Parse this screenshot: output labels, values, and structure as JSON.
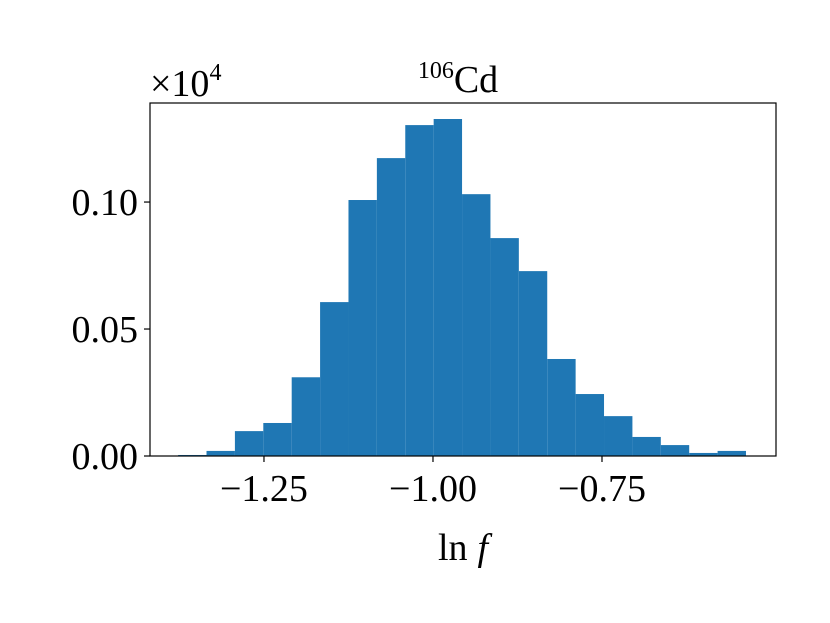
{
  "chart_data": {
    "type": "histogram",
    "title": {
      "superscript": "106",
      "text": "Cd"
    },
    "offset_text": {
      "base": "×10",
      "exponent": "4"
    },
    "xlabel": {
      "operator": "ln",
      "variable": "f"
    },
    "color": "#1f77b4",
    "bins": [
      -1.377,
      -1.335,
      -1.293,
      -1.251,
      -1.209,
      -1.167,
      -1.125,
      -1.083,
      -1.041,
      -0.999,
      -0.957,
      -0.915,
      -0.873,
      -0.831,
      -0.789,
      -0.747,
      -0.705,
      -0.663,
      -0.621,
      -0.579,
      -0.537
    ],
    "values": [
      0.0004,
      0.002,
      0.0098,
      0.013,
      0.031,
      0.0606,
      0.1008,
      0.1173,
      0.1303,
      0.1327,
      0.1031,
      0.0858,
      0.0728,
      0.0382,
      0.0244,
      0.0157,
      0.0075,
      0.0043,
      0.0012,
      0.002
    ],
    "xlim": [
      -1.4186,
      -0.4926
    ],
    "ylim": [
      0,
      0.139
    ],
    "xticks": [
      {
        "value": -1.25,
        "label": "−1.25"
      },
      {
        "value": -1.0,
        "label": "−1.00"
      },
      {
        "value": -0.75,
        "label": "−0.75"
      }
    ],
    "yticks": [
      {
        "value": 0,
        "label": "0.00"
      },
      {
        "value": 0.05,
        "label": "0.05"
      },
      {
        "value": 0.1,
        "label": "0.10"
      }
    ],
    "grid": false
  }
}
